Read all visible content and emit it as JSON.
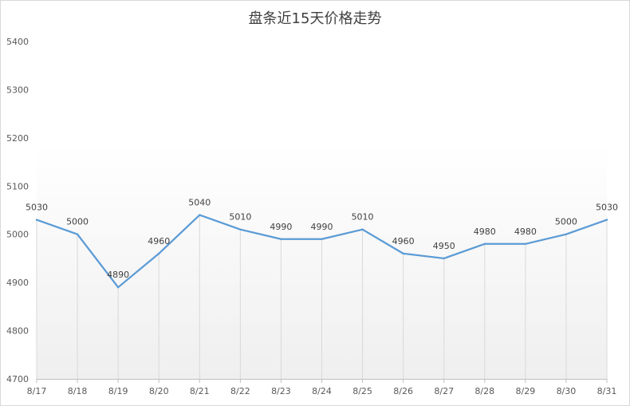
{
  "chart_data": {
    "type": "line",
    "title": "盘条近15天价格走势",
    "categories": [
      "8/17",
      "8/18",
      "8/19",
      "8/20",
      "8/21",
      "8/22",
      "8/23",
      "8/24",
      "8/25",
      "8/26",
      "8/27",
      "8/28",
      "8/29",
      "8/30",
      "8/31"
    ],
    "values": [
      5030,
      5000,
      4890,
      4960,
      5040,
      5010,
      4990,
      4990,
      5010,
      4960,
      4950,
      4980,
      4980,
      5000,
      5030
    ],
    "ylim": [
      4700,
      5400
    ],
    "yticks": [
      4700,
      4800,
      4900,
      5000,
      5100,
      5200,
      5300,
      5400
    ],
    "grid": false,
    "legend": "none",
    "data_labels": true,
    "drop_lines": true,
    "colors": {
      "line": "#5B9BD5",
      "drop_line": "#D9D9D9",
      "axis": "#BFBFBF",
      "border": "#D9D9D9",
      "plot_bottom": "#EFEFEF"
    }
  }
}
